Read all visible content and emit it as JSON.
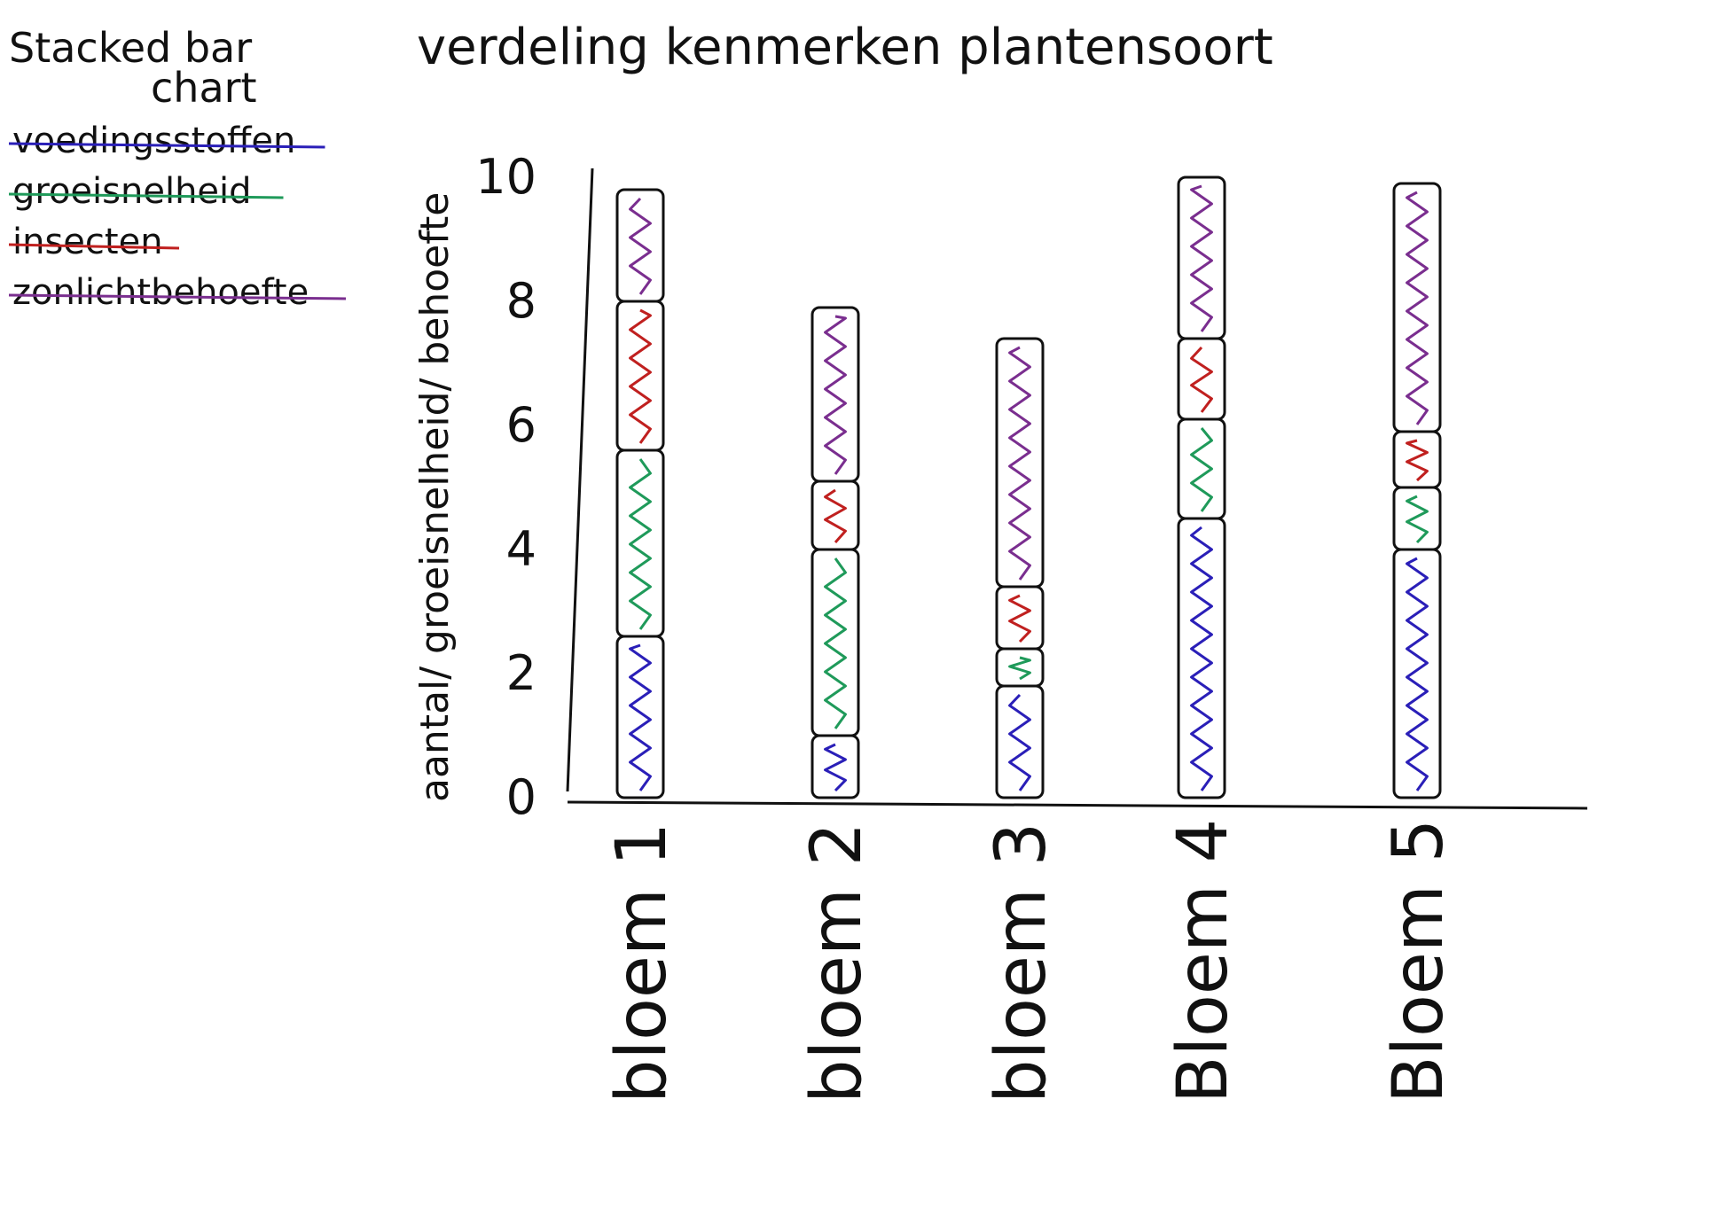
{
  "chart_data": {
    "type": "bar",
    "stacked": true,
    "title": "verdeling kenmerken plantensoort",
    "chart_kind_label": [
      "Stacked bar",
      "chart"
    ],
    "ylabel": "aantal/ groeisnelheid/ behoefte",
    "xlabel": "",
    "ylim": [
      0,
      10
    ],
    "yticks": [
      "0",
      "2",
      "4",
      "6",
      "8",
      "10"
    ],
    "categories": [
      "bloem 1",
      "bloem 2",
      "bloem 3",
      "Bloem 4",
      "Bloem 5"
    ],
    "series": [
      {
        "name": "voedingsstoffen",
        "color": "#2a1fb8",
        "values": [
          2.6,
          1.0,
          1.8,
          4.5,
          4.0
        ]
      },
      {
        "name": "groeisnelheid",
        "color": "#1f9a5a",
        "values": [
          3.0,
          3.0,
          0.6,
          1.6,
          1.0
        ]
      },
      {
        "name": "insecten",
        "color": "#c0201f",
        "values": [
          2.4,
          1.1,
          1.0,
          1.3,
          0.9
        ]
      },
      {
        "name": "zonlichtbehoefte",
        "color": "#7a2e8f",
        "values": [
          1.8,
          2.8,
          4.0,
          2.6,
          4.0
        ]
      }
    ],
    "grid": false,
    "legend_position": "top-left"
  }
}
